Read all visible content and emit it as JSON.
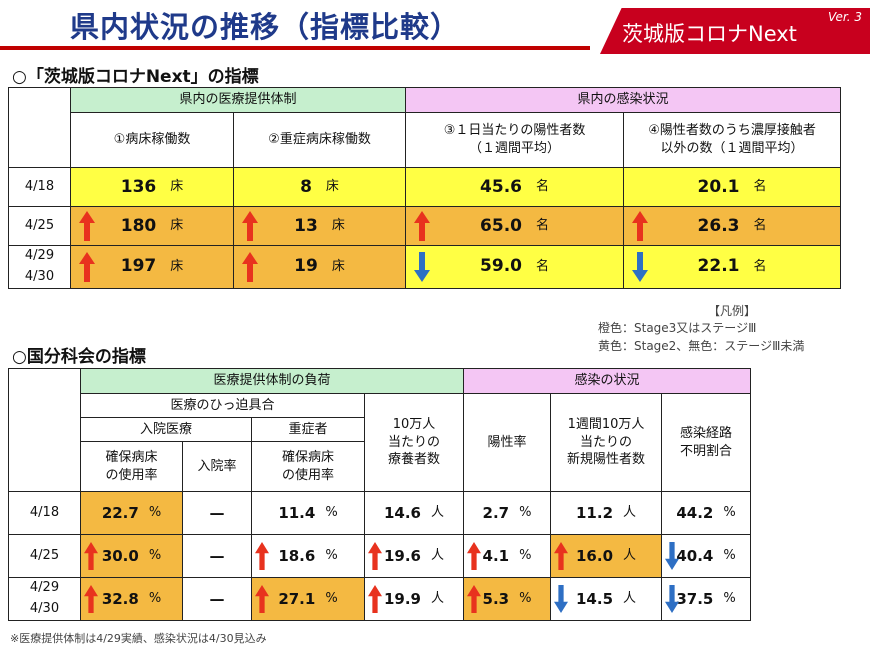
{
  "header": {
    "title": "県内状況の推移（指標比較）",
    "brand": "茨城版コロナNext",
    "version": "Ver. 3"
  },
  "section1": {
    "title": "○「茨城版コロナNext」の指標",
    "group_medical": "県内の医療提供体制",
    "group_infection": "県内の感染状況",
    "col1": "①病床稼働数",
    "col2": "②重症病床稼働数",
    "col3_line1": "③１日当たりの陽性者数",
    "col3_line2": "（１週間平均）",
    "col4_line1": "④陽性者数のうち濃厚接触者",
    "col4_line2": "以外の数（１週間平均）",
    "rows": [
      {
        "date1": "4/18",
        "date2": "",
        "cells": [
          {
            "value": "136",
            "unit": "床",
            "arrow": "none",
            "fill": "yellow"
          },
          {
            "value": "8",
            "unit": "床",
            "arrow": "none",
            "fill": "yellow"
          },
          {
            "value": "45.6",
            "unit": "名",
            "arrow": "none",
            "fill": "yellow"
          },
          {
            "value": "20.1",
            "unit": "名",
            "arrow": "none",
            "fill": "yellow"
          }
        ]
      },
      {
        "date1": "4/25",
        "date2": "",
        "cells": [
          {
            "value": "180",
            "unit": "床",
            "arrow": "up",
            "fill": "orange"
          },
          {
            "value": "13",
            "unit": "床",
            "arrow": "up",
            "fill": "orange"
          },
          {
            "value": "65.0",
            "unit": "名",
            "arrow": "up",
            "fill": "orange"
          },
          {
            "value": "26.3",
            "unit": "名",
            "arrow": "up",
            "fill": "orange"
          }
        ]
      },
      {
        "date1": "4/29",
        "date2": "4/30",
        "cells": [
          {
            "value": "197",
            "unit": "床",
            "arrow": "up",
            "fill": "orange"
          },
          {
            "value": "19",
            "unit": "床",
            "arrow": "up",
            "fill": "orange"
          },
          {
            "value": "59.0",
            "unit": "名",
            "arrow": "down",
            "fill": "yellow"
          },
          {
            "value": "22.1",
            "unit": "名",
            "arrow": "down",
            "fill": "yellow"
          }
        ]
      }
    ]
  },
  "legend": {
    "title": "【凡例】",
    "line1": "橙色：Stage3又はステージⅢ",
    "line2": "黄色：Stage2、無色：ステージⅢ未満"
  },
  "section2": {
    "title": "○国分科会の指標",
    "group_medical": "医療提供体制の負荷",
    "group_infection": "感染の状況",
    "sub_tightness": "医療のひっ迫具合",
    "sub_hospital": "入院医療",
    "sub_severe": "重症者",
    "col_bed_rate_l1": "確保病床",
    "col_bed_rate_l2": "の使用率",
    "col_admission": "入院率",
    "col_severe_rate_l1": "確保病床",
    "col_severe_rate_l2": "の使用率",
    "col_recuper_l1": "10万人",
    "col_recuper_l2": "当たりの",
    "col_recuper_l3": "療養者数",
    "col_positive": "陽性率",
    "col_new_l1": "1週間10万人",
    "col_new_l2": "当たりの",
    "col_new_l3": "新規陽性者数",
    "col_unknown_l1": "感染経路",
    "col_unknown_l2": "不明割合",
    "rows": [
      {
        "date1": "4/18",
        "date2": "",
        "cells": [
          {
            "value": "22.7",
            "unit": "%",
            "arrow": "none",
            "fill": "orange"
          },
          {
            "value": "—",
            "unit": "",
            "arrow": "none",
            "fill": "none"
          },
          {
            "value": "11.4",
            "unit": "%",
            "arrow": "none",
            "fill": "none"
          },
          {
            "value": "14.6",
            "unit": "人",
            "arrow": "none",
            "fill": "none"
          },
          {
            "value": "2.7",
            "unit": "%",
            "arrow": "none",
            "fill": "none"
          },
          {
            "value": "11.2",
            "unit": "人",
            "arrow": "none",
            "fill": "none"
          },
          {
            "value": "44.2",
            "unit": "%",
            "arrow": "none",
            "fill": "none"
          }
        ]
      },
      {
        "date1": "4/25",
        "date2": "",
        "cells": [
          {
            "value": "30.0",
            "unit": "%",
            "arrow": "up",
            "fill": "orange"
          },
          {
            "value": "—",
            "unit": "",
            "arrow": "none",
            "fill": "none"
          },
          {
            "value": "18.6",
            "unit": "%",
            "arrow": "up",
            "fill": "none"
          },
          {
            "value": "19.6",
            "unit": "人",
            "arrow": "up",
            "fill": "none"
          },
          {
            "value": "4.1",
            "unit": "%",
            "arrow": "up",
            "fill": "none"
          },
          {
            "value": "16.0",
            "unit": "人",
            "arrow": "up",
            "fill": "orange"
          },
          {
            "value": "40.4",
            "unit": "%",
            "arrow": "down",
            "fill": "none"
          }
        ]
      },
      {
        "date1": "4/29",
        "date2": "4/30",
        "cells": [
          {
            "value": "32.8",
            "unit": "%",
            "arrow": "up",
            "fill": "orange"
          },
          {
            "value": "—",
            "unit": "",
            "arrow": "none",
            "fill": "none"
          },
          {
            "value": "27.1",
            "unit": "%",
            "arrow": "up",
            "fill": "orange"
          },
          {
            "value": "19.9",
            "unit": "人",
            "arrow": "up",
            "fill": "none"
          },
          {
            "value": "5.3",
            "unit": "%",
            "arrow": "up",
            "fill": "orange"
          },
          {
            "value": "14.5",
            "unit": "人",
            "arrow": "down",
            "fill": "none"
          },
          {
            "value": "37.5",
            "unit": "%",
            "arrow": "down",
            "fill": "none"
          }
        ]
      }
    ]
  },
  "footnote": "※医療提供体制は4/29実績、感染状況は4/30見込み",
  "colors": {
    "orange": "#f4b942",
    "yellow": "#ffff44",
    "arrow_up": "#e8321e",
    "arrow_down": "#2e6fc4",
    "header_green": "#c6efce",
    "header_pink": "#f4c6f4"
  }
}
